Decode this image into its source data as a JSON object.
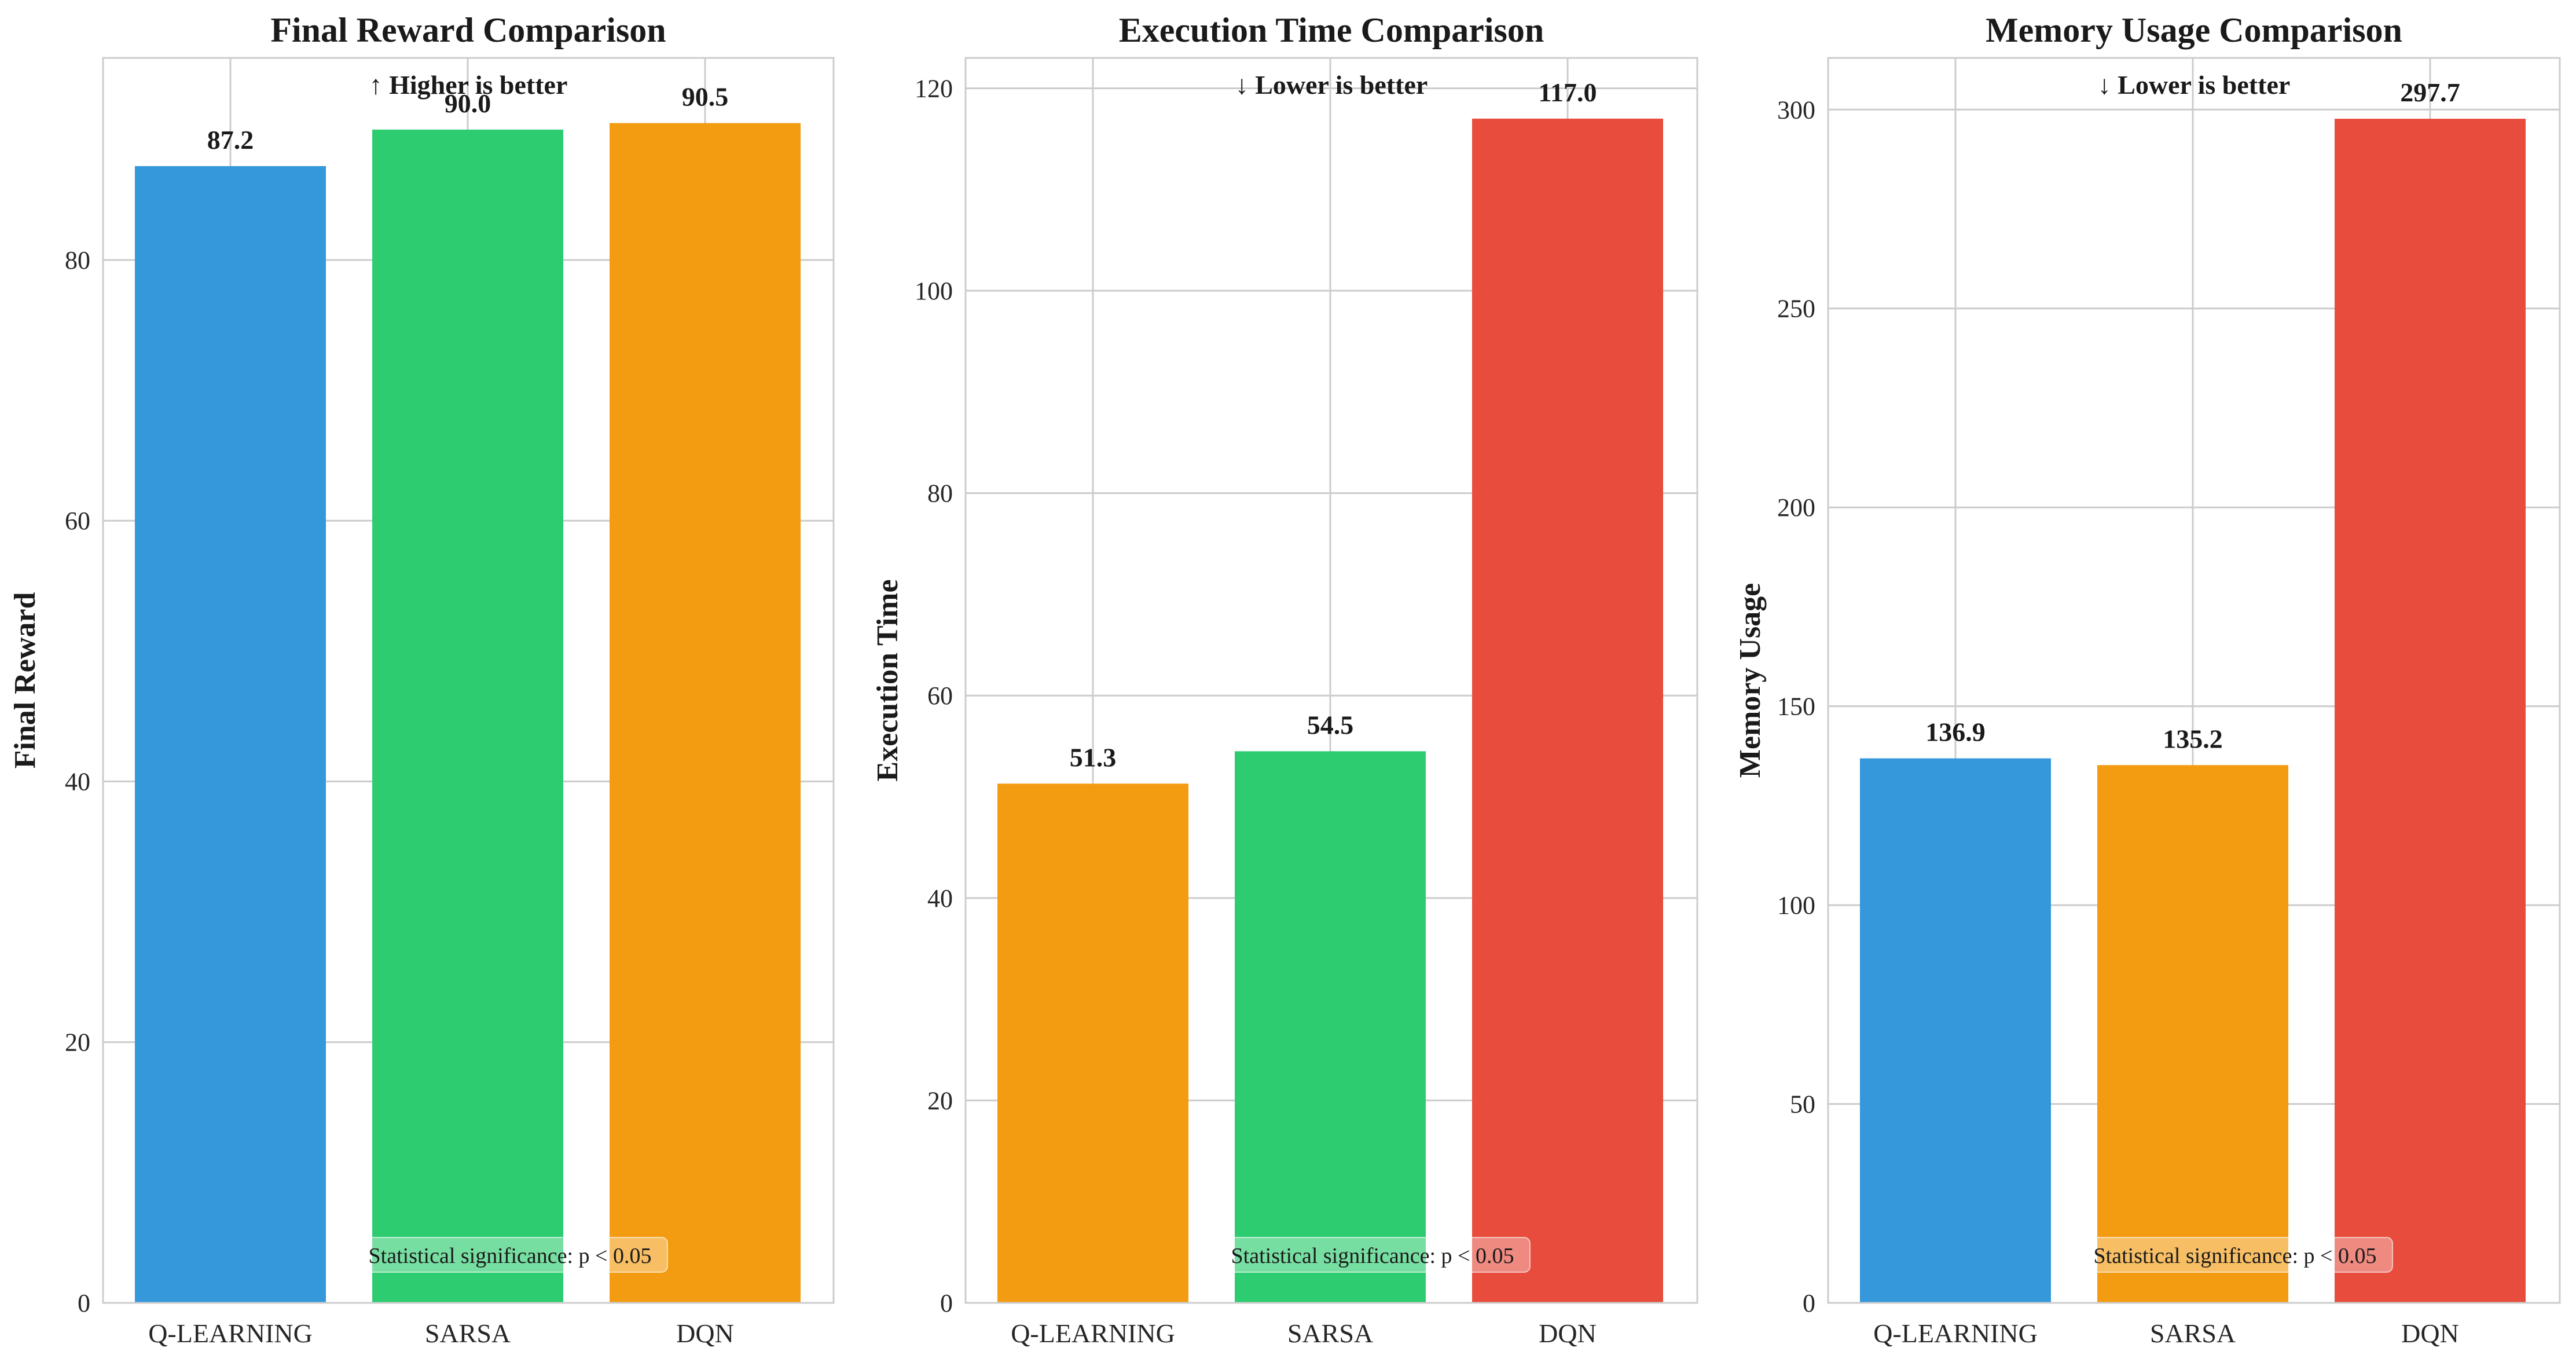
{
  "chart_data": [
    {
      "type": "bar",
      "title": "Final Reward Comparison",
      "xlabel": "",
      "ylabel": "Final Reward",
      "annotation": "↑ Higher is better",
      "significance": "Statistical significance: p < 0.05",
      "categories": [
        "Q-LEARNING",
        "SARSA",
        "DQN"
      ],
      "values": [
        87.2,
        90.0,
        90.5
      ],
      "value_labels": [
        "87.2",
        "90.0",
        "90.5"
      ],
      "colors": [
        "#3498db",
        "#2ecc71",
        "#f39c12"
      ],
      "ylim": [
        0,
        95.5
      ],
      "yticks": [
        0,
        20,
        40,
        60,
        80
      ],
      "grid": true,
      "legend": "none"
    },
    {
      "type": "bar",
      "title": "Execution Time Comparison",
      "xlabel": "",
      "ylabel": "Execution Time",
      "annotation": "↓ Lower is better",
      "significance": "Statistical significance: p < 0.05",
      "categories": [
        "Q-LEARNING",
        "SARSA",
        "DQN"
      ],
      "values": [
        51.3,
        54.5,
        117.0
      ],
      "value_labels": [
        "51.3",
        "54.5",
        "117.0"
      ],
      "colors": [
        "#f39c12",
        "#2ecc71",
        "#e74c3c"
      ],
      "ylim": [
        0,
        123
      ],
      "yticks": [
        0,
        20,
        40,
        60,
        80,
        100,
        120
      ],
      "grid": true,
      "legend": "none"
    },
    {
      "type": "bar",
      "title": "Memory Usage Comparison",
      "xlabel": "",
      "ylabel": "Memory Usage",
      "annotation": "↓ Lower is better",
      "significance": "Statistical significance: p < 0.05",
      "categories": [
        "Q-LEARNING",
        "SARSA",
        "DQN"
      ],
      "values": [
        136.9,
        135.2,
        297.7
      ],
      "value_labels": [
        "136.9",
        "135.2",
        "297.7"
      ],
      "colors": [
        "#3498db",
        "#f39c12",
        "#e74c3c"
      ],
      "ylim": [
        0,
        313
      ],
      "yticks": [
        0,
        50,
        100,
        150,
        200,
        250,
        300
      ],
      "grid": true,
      "legend": "none"
    }
  ]
}
